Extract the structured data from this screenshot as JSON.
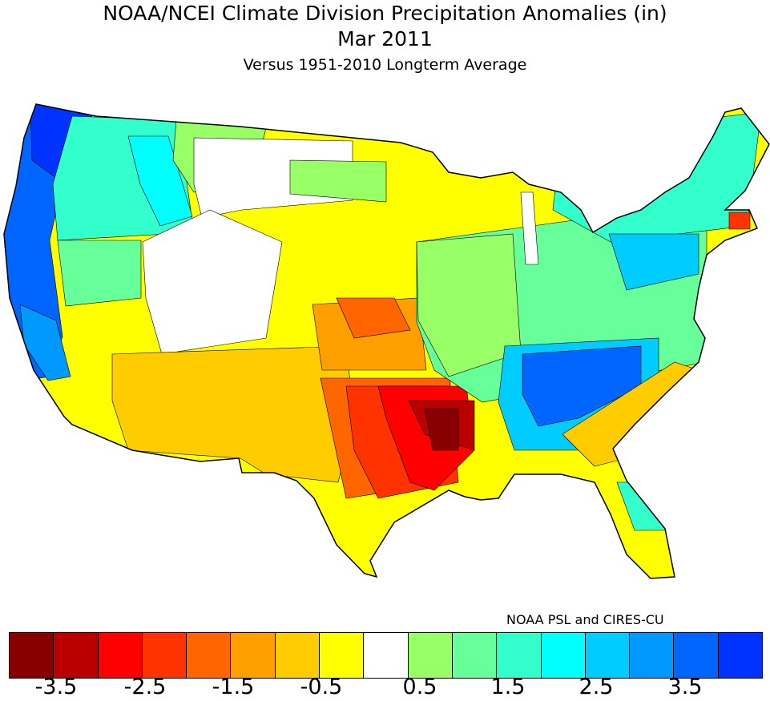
{
  "title": "NOAA/NCEI Climate Division Precipitation Anomalies (in)",
  "subtitle": "Mar 2011",
  "baseline": "Versus 1951-2010 Longterm Average",
  "credit": "NOAA PSL and CIRES-CU",
  "colorbar": {
    "colors": [
      "#880000",
      "#bb0000",
      "#ff0000",
      "#ff3300",
      "#ff6600",
      "#ffa000",
      "#ffcc00",
      "#ffff00",
      "#ffffff",
      "#99ff66",
      "#66ff99",
      "#33ffcc",
      "#00ffff",
      "#00ccff",
      "#0099ff",
      "#0066ff",
      "#0033ff"
    ],
    "labels": [
      "-3.5",
      "-2.5",
      "-1.5",
      "-0.5",
      "0.5",
      "1.5",
      "2.5",
      "3.5"
    ],
    "units": "in"
  }
}
